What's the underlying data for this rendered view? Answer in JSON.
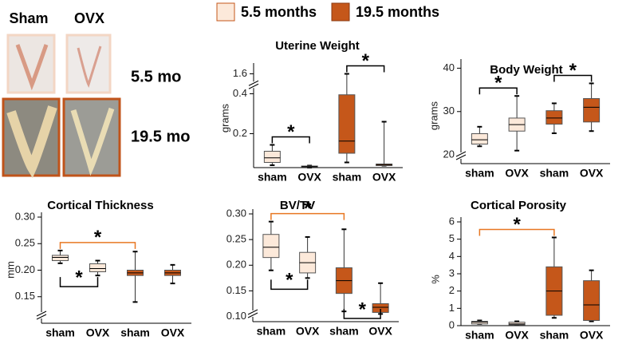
{
  "legend": [
    {
      "name": "5.5 months",
      "color": "#fce9da"
    },
    {
      "name": "19.5 months",
      "color": "#c5571a"
    }
  ],
  "photo_panel": {
    "columns": [
      "Sham",
      "OVX"
    ],
    "rows": [
      "5.5 mo",
      "19.5 mo"
    ]
  },
  "chart_data": [
    {
      "type": "box",
      "title": "Uterine Weight",
      "ylabel": "grams",
      "categories": [
        "sham",
        "OVX",
        "sham",
        "OVX"
      ],
      "ylim": [
        0.03,
        1.65
      ],
      "ybreak": [
        0.42,
        1.55
      ],
      "yticks": [
        0.2,
        0.4,
        1.6
      ],
      "boxes": [
        {
          "color": "#fce9da",
          "min": 0.042,
          "q1": 0.056,
          "median": 0.079,
          "q3": 0.112,
          "max": 0.144
        },
        {
          "color": "#fce9da",
          "min": 0.03,
          "q1": 0.033,
          "median": 0.035,
          "q3": 0.038,
          "max": 0.04
        },
        {
          "color": "#c5571a",
          "min": 0.056,
          "q1": 0.102,
          "median": 0.163,
          "q3": 0.395,
          "max": 1.6
        },
        {
          "color": "#c5571a",
          "min": 0.04,
          "q1": 0.04,
          "median": 0.045,
          "q3": 0.048,
          "max": 0.26
        }
      ],
      "annotations": [
        {
          "text": "*",
          "pair": [
            0,
            1
          ],
          "side": "above",
          "color": "#000000"
        },
        {
          "text": "*",
          "pair": [
            2,
            3
          ],
          "side": "above",
          "color": "#000000"
        }
      ]
    },
    {
      "type": "box",
      "title": "Body Weight",
      "ylabel": "grams",
      "categories": [
        "sham",
        "OVX",
        "sham",
        "OVX"
      ],
      "ylim": [
        18,
        41
      ],
      "yticks": [
        20,
        30,
        40
      ],
      "axis_break": true,
      "boxes": [
        {
          "color": "#fce9da",
          "min": 22,
          "q1": 22.5,
          "median": 23.5,
          "q3": 24.9,
          "max": 26.5
        },
        {
          "color": "#fce9da",
          "min": 21,
          "q1": 25.5,
          "median": 27,
          "q3": 28.5,
          "max": 33.6
        },
        {
          "color": "#c5571a",
          "min": 25,
          "q1": 27.1,
          "median": 28.5,
          "q3": 30.2,
          "max": 31.9
        },
        {
          "color": "#c5571a",
          "min": 25.5,
          "q1": 27.6,
          "median": 31,
          "q3": 33,
          "max": 36.5
        }
      ],
      "annotations": [
        {
          "text": "*",
          "pair": [
            0,
            1
          ],
          "side": "above",
          "color": "#000000"
        },
        {
          "text": "*",
          "pair": [
            2,
            3
          ],
          "side": "above",
          "color": "#000000"
        }
      ]
    },
    {
      "type": "box",
      "title": "Cortical Thickness",
      "ylabel": "mm",
      "categories": [
        "sham",
        "OVX",
        "sham",
        "OVX"
      ],
      "ylim": [
        0.1,
        0.3
      ],
      "yticks": [
        0.15,
        {
          "value": 0.2,
          "label": "0.20"
        },
        0.25,
        {
          "value": 0.3,
          "label": "0.30"
        }
      ],
      "axis_break": true,
      "boxes": [
        {
          "color": "#fce9da",
          "min": 0.213,
          "q1": 0.218,
          "median": 0.224,
          "q3": 0.228,
          "max": 0.237
        },
        {
          "color": "#fce9da",
          "min": 0.19,
          "q1": 0.197,
          "median": 0.203,
          "q3": 0.212,
          "max": 0.218
        },
        {
          "color": "#c5571a",
          "min": 0.14,
          "q1": 0.19,
          "median": 0.195,
          "q3": 0.2,
          "max": 0.235
        },
        {
          "color": "#c5571a",
          "min": 0.175,
          "q1": 0.19,
          "median": 0.195,
          "q3": 0.2,
          "max": 0.21
        }
      ],
      "annotations": [
        {
          "text": "*",
          "pair": [
            0,
            2
          ],
          "side": "above",
          "color": "#e87722"
        },
        {
          "text": "*",
          "pair": [
            0,
            1
          ],
          "side": "below",
          "color": "#000000"
        }
      ]
    },
    {
      "type": "box",
      "title": "BV/TV",
      "categories": [
        "sham",
        "OVX",
        "sham",
        "OVX"
      ],
      "ylim": [
        0.09,
        0.3
      ],
      "yticks": [
        {
          "value": 0.1,
          "label": "0.10"
        },
        0.15,
        {
          "value": 0.2,
          "label": "0.20"
        },
        0.25,
        {
          "value": 0.3,
          "label": "0.30"
        }
      ],
      "axis_break": true,
      "boxes": [
        {
          "color": "#fce9da",
          "min": 0.19,
          "q1": 0.215,
          "median": 0.235,
          "q3": 0.26,
          "max": 0.285
        },
        {
          "color": "#fce9da",
          "min": 0.175,
          "q1": 0.185,
          "median": 0.205,
          "q3": 0.225,
          "max": 0.255
        },
        {
          "color": "#c5571a",
          "min": 0.11,
          "q1": 0.145,
          "median": 0.17,
          "q3": 0.195,
          "max": 0.27
        },
        {
          "color": "#c5571a",
          "min": 0.105,
          "q1": 0.108,
          "median": 0.118,
          "q3": 0.125,
          "max": 0.165
        }
      ],
      "annotations": [
        {
          "text": "*",
          "pair": [
            0,
            2
          ],
          "side": "above",
          "color": "#e87722"
        },
        {
          "text": "*",
          "pair": [
            0,
            1
          ],
          "side": "below",
          "color": "#000000"
        },
        {
          "text": "*",
          "pair": [
            2,
            3
          ],
          "side": "below",
          "color": "#000000"
        }
      ]
    },
    {
      "type": "box",
      "title": "Cortical Porosity",
      "ylabel": "%",
      "categories": [
        "sham",
        "OVX",
        "sham",
        "OVX"
      ],
      "ylim": [
        0,
        6
      ],
      "yticks": [
        0,
        1,
        2,
        3,
        4,
        5,
        6
      ],
      "boxes": [
        {
          "color": "#fce9da",
          "min": 0.1,
          "q1": 0.1,
          "median": 0.2,
          "q3": 0.25,
          "max": 0.3
        },
        {
          "color": "#fce9da",
          "min": 0.05,
          "q1": 0.05,
          "median": 0.1,
          "q3": 0.2,
          "max": 0.25
        },
        {
          "color": "#c5571a",
          "min": 0.45,
          "q1": 0.6,
          "median": 2.0,
          "q3": 3.4,
          "max": 5.1
        },
        {
          "color": "#c5571a",
          "min": 0.25,
          "q1": 0.3,
          "median": 1.2,
          "q3": 2.6,
          "max": 3.2
        }
      ],
      "annotations": [
        {
          "text": "*",
          "pair": [
            0,
            2
          ],
          "side": "above",
          "color": "#e87722"
        }
      ]
    }
  ]
}
